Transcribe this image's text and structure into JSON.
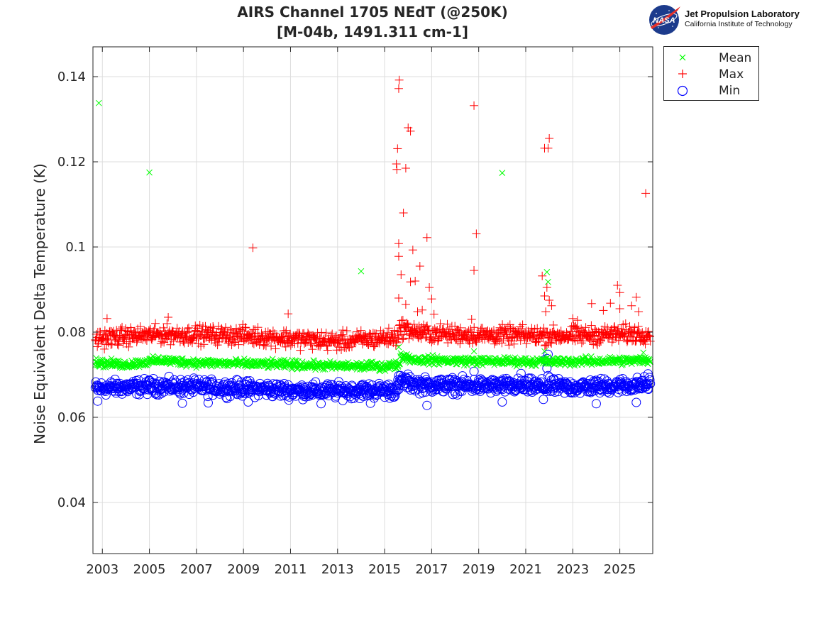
{
  "header": {
    "title_line1": "AIRS Channel 1705 NEdT (@250K)",
    "title_line2": "[M-04b, 1491.311 cm-1]"
  },
  "logo": {
    "badge_text": "NASA",
    "line1": "Jet Propulsion Laboratory",
    "line2": "California Institute of Technology"
  },
  "chart_data": {
    "type": "scatter",
    "ylabel": "Noise Equivalent Delta Temperature (K)",
    "xlabel": "",
    "xlim": [
      2002.6,
      2026.4
    ],
    "ylim": [
      0.028,
      0.147
    ],
    "x_ticks": [
      2003,
      2005,
      2007,
      2009,
      2011,
      2013,
      2015,
      2017,
      2019,
      2021,
      2023,
      2025
    ],
    "x_tick_labels": [
      "2003",
      "2005",
      "2007",
      "2009",
      "2011",
      "2013",
      "2015",
      "2017",
      "2019",
      "2021",
      "2023",
      "2025"
    ],
    "y_ticks": [
      0.04,
      0.06,
      0.08,
      0.1,
      0.12,
      0.14
    ],
    "y_tick_labels": [
      "0.04",
      "0.06",
      "0.08",
      "0.1",
      "0.12",
      "0.14"
    ],
    "grid": true,
    "legend_position": "outside-top-right",
    "series": [
      {
        "name": "Mean",
        "color": "#00ff00",
        "marker": "x",
        "baseline": [
          [
            2002.7,
            0.0728
          ],
          [
            2004.0,
            0.0724
          ],
          [
            2005.5,
            0.0734
          ],
          [
            2007.0,
            0.0728
          ],
          [
            2009.0,
            0.0726
          ],
          [
            2011.0,
            0.0724
          ],
          [
            2013.0,
            0.072
          ],
          [
            2015.0,
            0.072
          ],
          [
            2015.6,
            0.0722
          ],
          [
            2015.7,
            0.0745
          ],
          [
            2016.3,
            0.0735
          ],
          [
            2019.0,
            0.0732
          ],
          [
            2021.0,
            0.0731
          ],
          [
            2023.0,
            0.0731
          ],
          [
            2026.3,
            0.0734
          ]
        ],
        "spread": 0.0006,
        "outliers": [
          [
            2002.85,
            0.1338
          ],
          [
            2005.0,
            0.1175
          ],
          [
            2014.0,
            0.0943
          ],
          [
            2013.3,
            0.0725
          ],
          [
            2015.6,
            0.0765
          ],
          [
            2018.8,
            0.0755
          ],
          [
            2020.0,
            0.1174
          ],
          [
            2021.9,
            0.0941
          ],
          [
            2021.95,
            0.0918
          ],
          [
            2021.8,
            0.0755
          ],
          [
            2026.0,
            0.0752
          ]
        ]
      },
      {
        "name": "Max",
        "color": "#ff0000",
        "marker": "+",
        "baseline": [
          [
            2002.7,
            0.0785
          ],
          [
            2005.5,
            0.0795
          ],
          [
            2009.0,
            0.0792
          ],
          [
            2011.0,
            0.0785
          ],
          [
            2013.0,
            0.0778
          ],
          [
            2015.5,
            0.0788
          ],
          [
            2015.7,
            0.081
          ],
          [
            2016.5,
            0.0798
          ],
          [
            2019.0,
            0.0793
          ],
          [
            2023.0,
            0.0792
          ],
          [
            2026.3,
            0.0797
          ]
        ],
        "spread": 0.0013,
        "outliers": [
          [
            2003.2,
            0.0832
          ],
          [
            2005.8,
            0.0835
          ],
          [
            2009.4,
            0.0998
          ],
          [
            2010.9,
            0.0843
          ],
          [
            2015.62,
            0.1392
          ],
          [
            2015.6,
            0.1372
          ],
          [
            2015.55,
            0.1231
          ],
          [
            2015.5,
            0.1195
          ],
          [
            2015.52,
            0.1182
          ],
          [
            2015.9,
            0.1185
          ],
          [
            2016.0,
            0.128
          ],
          [
            2016.1,
            0.1272
          ],
          [
            2015.8,
            0.108
          ],
          [
            2016.8,
            0.1022
          ],
          [
            2015.6,
            0.1008
          ],
          [
            2016.2,
            0.0993
          ],
          [
            2015.6,
            0.0978
          ],
          [
            2016.5,
            0.0955
          ],
          [
            2015.7,
            0.0935
          ],
          [
            2016.1,
            0.0918
          ],
          [
            2016.3,
            0.092
          ],
          [
            2016.9,
            0.0905
          ],
          [
            2017.0,
            0.0878
          ],
          [
            2016.6,
            0.0852
          ],
          [
            2017.1,
            0.0842
          ],
          [
            2015.6,
            0.088
          ],
          [
            2015.9,
            0.0865
          ],
          [
            2016.4,
            0.0848
          ],
          [
            2018.8,
            0.1332
          ],
          [
            2018.9,
            0.1031
          ],
          [
            2018.8,
            0.0945
          ],
          [
            2018.7,
            0.083
          ],
          [
            2021.8,
            0.1232
          ],
          [
            2022.0,
            0.1255
          ],
          [
            2021.95,
            0.1232
          ],
          [
            2021.7,
            0.0932
          ],
          [
            2021.9,
            0.0905
          ],
          [
            2021.8,
            0.0885
          ],
          [
            2022.0,
            0.0875
          ],
          [
            2022.1,
            0.0862
          ],
          [
            2021.85,
            0.0848
          ],
          [
            2023.0,
            0.0832
          ],
          [
            2023.2,
            0.0828
          ],
          [
            2023.8,
            0.0867
          ],
          [
            2024.3,
            0.0851
          ],
          [
            2024.6,
            0.0868
          ],
          [
            2024.9,
            0.091
          ],
          [
            2025.0,
            0.0893
          ],
          [
            2025.0,
            0.0855
          ],
          [
            2025.5,
            0.0862
          ],
          [
            2025.7,
            0.0882
          ],
          [
            2025.8,
            0.0848
          ],
          [
            2026.1,
            0.1126
          ]
        ]
      },
      {
        "name": "Min",
        "color": "#0000ff",
        "marker": "o",
        "baseline": [
          [
            2002.7,
            0.0668
          ],
          [
            2005.5,
            0.0673
          ],
          [
            2009.0,
            0.0668
          ],
          [
            2011.0,
            0.0663
          ],
          [
            2013.0,
            0.0662
          ],
          [
            2015.5,
            0.0664
          ],
          [
            2015.7,
            0.0685
          ],
          [
            2016.5,
            0.0676
          ],
          [
            2019.0,
            0.0674
          ],
          [
            2023.0,
            0.0671
          ],
          [
            2026.3,
            0.0677
          ]
        ],
        "spread": 0.0011,
        "outliers": [
          [
            2002.8,
            0.0638
          ],
          [
            2006.4,
            0.0633
          ],
          [
            2007.5,
            0.0634
          ],
          [
            2009.2,
            0.0636
          ],
          [
            2012.3,
            0.0632
          ],
          [
            2014.4,
            0.0633
          ],
          [
            2015.6,
            0.0698
          ],
          [
            2016.8,
            0.0628
          ],
          [
            2018.8,
            0.0708
          ],
          [
            2020.0,
            0.0636
          ],
          [
            2020.8,
            0.0703
          ],
          [
            2021.75,
            0.0642
          ],
          [
            2021.8,
            0.0735
          ],
          [
            2021.9,
            0.0738
          ],
          [
            2021.95,
            0.0748
          ],
          [
            2021.9,
            0.0715
          ],
          [
            2021.95,
            0.0698
          ],
          [
            2024.0,
            0.0632
          ],
          [
            2025.7,
            0.0635
          ],
          [
            2026.2,
            0.0702
          ]
        ]
      }
    ]
  }
}
